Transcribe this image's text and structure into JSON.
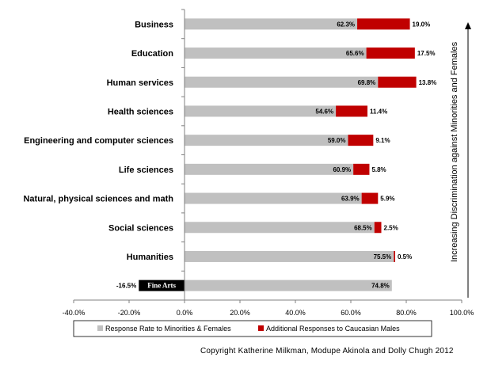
{
  "chart_data": {
    "type": "bar",
    "stacked": true,
    "orientation": "horizontal",
    "categories": [
      "Business",
      "Education",
      "Human services",
      "Health sciences",
      "Engineering and computer sciences",
      "Life sciences",
      "Natural, physical sciences and math",
      "Social sciences",
      "Humanities",
      "Fine Arts"
    ],
    "series": [
      {
        "name": "Response Rate to Minorities & Females",
        "color": "#c0c0c0",
        "values": [
          62.3,
          65.6,
          69.8,
          54.6,
          59.0,
          60.9,
          63.9,
          68.5,
          75.5,
          74.8
        ],
        "labels": [
          "62.3%",
          "65.6%",
          "69.8%",
          "54.6%",
          "59.0%",
          "60.9%",
          "63.9%",
          "68.5%",
          "75.5%",
          "74.8%"
        ]
      },
      {
        "name": "Additional Responses to Caucasian Males",
        "color": "#c00000",
        "values": [
          19.0,
          17.5,
          13.8,
          11.4,
          9.1,
          5.8,
          5.9,
          2.5,
          0.5,
          -16.5
        ],
        "labels": [
          "19.0%",
          "17.5%",
          "13.8%",
          "11.4%",
          "9.1%",
          "5.8%",
          "5.9%",
          "2.5%",
          "0.5%",
          "-16.5%"
        ]
      }
    ],
    "xlim": [
      -40,
      100
    ],
    "x_ticks": [
      "-40.0%",
      "-20.0%",
      "0.0%",
      "20.0%",
      "40.0%",
      "60.0%",
      "80.0%",
      "100.0%"
    ],
    "negative_bar_color": "#000000",
    "legend_position": "bottom",
    "side_annotation": "Increasing Discrimination  against Minorities and Females",
    "grid": false
  },
  "copyright": "Copyright Katherine Milkman, Modupe Akinola and Dolly Chugh 2012"
}
